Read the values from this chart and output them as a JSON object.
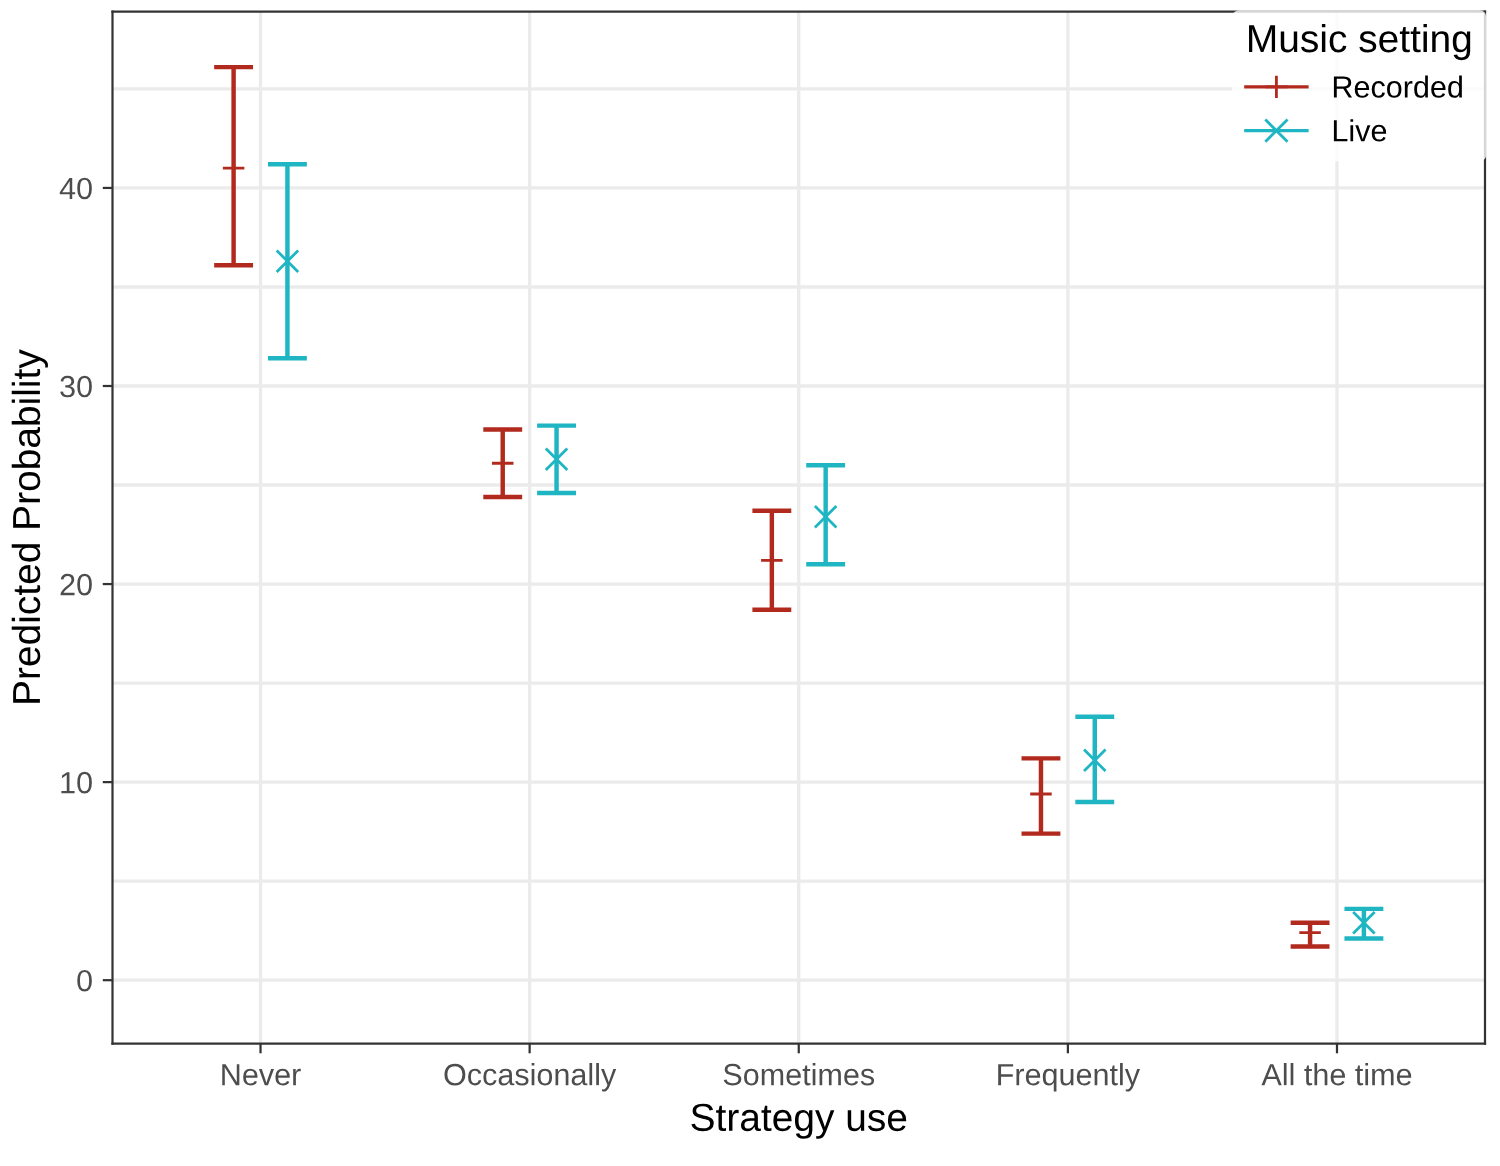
{
  "chart_data": {
    "type": "scatter",
    "xlabel": "Strategy use",
    "ylabel": "Predicted Probability",
    "legend_title": "Music setting",
    "categories": [
      "Never",
      "Occasionally",
      "Sometimes",
      "Frequently",
      "All the time"
    ],
    "series": [
      {
        "name": "Recorded",
        "color": "#b22a1e",
        "marker": "plus",
        "values": [
          41.0,
          26.1,
          21.2,
          9.4,
          2.4
        ],
        "errors": [
          [
            36.1,
            46.1
          ],
          [
            24.4,
            27.8
          ],
          [
            18.7,
            23.7
          ],
          [
            7.4,
            11.2
          ],
          [
            1.7,
            2.9
          ]
        ]
      },
      {
        "name": "Live",
        "color": "#1fb5c3",
        "marker": "cross",
        "values": [
          36.3,
          26.3,
          23.4,
          11.1,
          2.9
        ],
        "errors": [
          [
            31.4,
            41.2
          ],
          [
            24.6,
            28.0
          ],
          [
            21.0,
            26.0
          ],
          [
            9.0,
            13.3
          ],
          [
            2.1,
            3.6
          ]
        ]
      }
    ],
    "ylim": [
      -3.2,
      48.9
    ],
    "yticks": [
      0,
      {
        "value": 5,
        "label": null
      },
      10,
      {
        "value": 15,
        "label": null
      },
      20,
      {
        "value": 25,
        "label": null
      },
      30,
      {
        "value": 35,
        "label": null
      },
      40,
      {
        "value": 45,
        "label": null
      }
    ],
    "grid": true,
    "legend": "top right"
  }
}
